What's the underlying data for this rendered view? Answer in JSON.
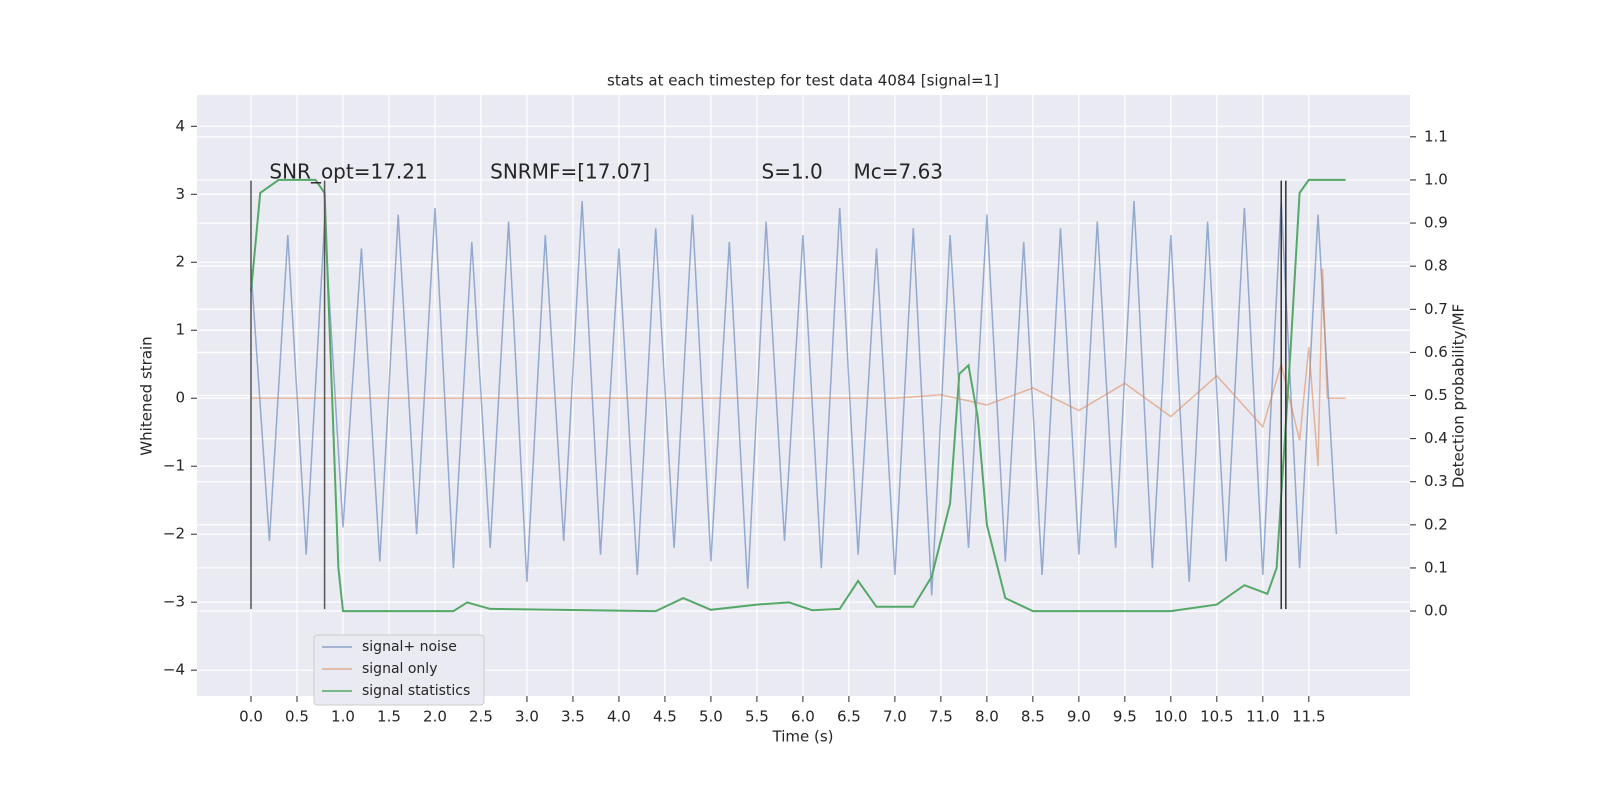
{
  "chart_data": {
    "type": "line",
    "title": "stats at each timestep for test data 4084 [signal=1]",
    "xlabel": "Time (s)",
    "ylabel": "Whitened strain",
    "y2label": "Detection probability/MF",
    "xlim": [
      -0.587,
      12.6
    ],
    "ylim": [
      -4.38,
      4.46
    ],
    "y2lim": [
      -0.197,
      1.197
    ],
    "xticks": [
      {
        "value": 0,
        "label": "0.0"
      },
      0.5,
      {
        "value": 1,
        "label": "1.0"
      },
      1.5,
      {
        "value": 2,
        "label": "2.0"
      },
      2.5,
      {
        "value": 3,
        "label": "3.0"
      },
      3.5,
      {
        "value": 4,
        "label": "4.0"
      },
      4.5,
      {
        "value": 5,
        "label": "5.0"
      },
      5.5,
      {
        "value": 6,
        "label": "6.0"
      },
      6.5,
      {
        "value": 7,
        "label": "7.0"
      },
      7.5,
      {
        "value": 8,
        "label": "8.0"
      },
      8.5,
      {
        "value": 9,
        "label": "9.0"
      },
      9.5,
      {
        "value": 10,
        "label": "10.0"
      },
      10.5,
      {
        "value": 11,
        "label": "11.0"
      },
      11.5
    ],
    "yticks": [
      {
        "value": -4,
        "label": "−4"
      },
      {
        "value": -3,
        "label": "−3"
      },
      {
        "value": -2,
        "label": "−2"
      },
      {
        "value": -1,
        "label": "−1"
      },
      0,
      1,
      2,
      3,
      4
    ],
    "y2ticks": [
      {
        "value": 0,
        "label": "0.0"
      },
      0.1,
      0.2,
      0.3,
      0.4,
      0.5,
      0.6,
      0.7,
      0.8,
      0.9,
      {
        "value": 1,
        "label": "1.0"
      },
      1.1
    ],
    "grid": true,
    "legend": "lower left",
    "series": [
      {
        "name": "signal+ noise",
        "color": "#4c72b0",
        "x": [
          0,
          0.2,
          0.4,
          0.6,
          0.8,
          1,
          1.2,
          1.4,
          1.6,
          1.8,
          2,
          2.2,
          2.4,
          2.6,
          2.8,
          3,
          3.2,
          3.4,
          3.6,
          3.8,
          4,
          4.2,
          4.4,
          4.6,
          4.8,
          5,
          5.2,
          5.4,
          5.6,
          5.8,
          6,
          6.2,
          6.4,
          6.6,
          6.8,
          7,
          7.2,
          7.4,
          7.6,
          7.8,
          8,
          8.2,
          8.4,
          8.6,
          8.8,
          9,
          9.2,
          9.4,
          9.6,
          9.8,
          10,
          10.2,
          10.4,
          10.6,
          10.8,
          11,
          11.2,
          11.4,
          11.6,
          11.8
        ],
        "values": [
          1.9,
          -2.1,
          2.4,
          -2.3,
          2.6,
          -1.9,
          2.2,
          -2.4,
          2.7,
          -2.0,
          2.8,
          -2.5,
          2.3,
          -2.2,
          2.6,
          -2.7,
          2.4,
          -2.1,
          2.9,
          -2.3,
          2.2,
          -2.6,
          2.5,
          -2.2,
          2.7,
          -2.4,
          2.3,
          -2.8,
          2.6,
          -2.1,
          2.4,
          -2.5,
          2.8,
          -2.3,
          2.2,
          -2.6,
          2.5,
          -2.9,
          2.4,
          -2.2,
          2.7,
          -2.4,
          2.3,
          -2.6,
          2.5,
          -2.3,
          2.6,
          -2.2,
          2.9,
          -2.5,
          2.4,
          -2.7,
          2.6,
          -2.4,
          2.8,
          -2.6,
          2.9,
          -2.5,
          2.7,
          -2.0
        ]
      },
      {
        "name": "signal only",
        "color": "#dd8452",
        "x": [
          0,
          7.0,
          7.5,
          8.0,
          8.5,
          9.0,
          9.5,
          10.0,
          10.5,
          11.0,
          11.2,
          11.4,
          11.5,
          11.6,
          11.65,
          11.7,
          11.9
        ],
        "values": [
          0,
          0,
          0.05,
          -0.1,
          0.15,
          -0.18,
          0.22,
          -0.27,
          0.33,
          -0.42,
          0.5,
          -0.62,
          0.75,
          -1.0,
          1.9,
          0,
          0
        ]
      },
      {
        "name": "signal statistics",
        "color": "#55a868",
        "axis": "y2",
        "x": [
          0,
          0.1,
          0.3,
          0.7,
          0.8,
          0.95,
          1.0,
          2.2,
          2.35,
          2.6,
          4.4,
          4.7,
          5.0,
          5.5,
          5.85,
          6.1,
          6.4,
          6.6,
          6.8,
          7.2,
          7.4,
          7.6,
          7.7,
          7.8,
          7.9,
          8.0,
          8.2,
          8.5,
          9.0,
          10.0,
          10.5,
          10.8,
          11.05,
          11.15,
          11.3,
          11.4,
          11.5,
          11.9
        ],
        "values": [
          0.74,
          0.97,
          1.0,
          1.0,
          0.97,
          0.1,
          0.0,
          0.0,
          0.02,
          0.005,
          0.0,
          0.03,
          0.003,
          0.015,
          0.02,
          0.002,
          0.005,
          0.07,
          0.01,
          0.01,
          0.08,
          0.25,
          0.55,
          0.57,
          0.45,
          0.2,
          0.03,
          0.0,
          0.0,
          0.0,
          0.015,
          0.06,
          0.04,
          0.1,
          0.6,
          0.97,
          1.0,
          1.0
        ]
      }
    ],
    "vlines": [
      {
        "x": 0,
        "ymin": -3.1,
        "ymax": 3.2,
        "color": "#555555"
      },
      {
        "x": 0.8,
        "ymin": -3.1,
        "ymax": 3.2,
        "color": "#555555"
      },
      {
        "x": 11.2,
        "ymin": -3.1,
        "ymax": 3.2,
        "color": "#333333"
      },
      {
        "x": 11.25,
        "ymin": -3.1,
        "ymax": 3.2,
        "color": "#333333"
      }
    ],
    "annotations": [
      {
        "text": "SNR_opt=17.21",
        "x": 0.2,
        "y": 3.31
      },
      {
        "text": "SNRMF=[17.07]",
        "x": 2.6,
        "y": 3.31
      },
      {
        "text": "S=1.0",
        "x": 5.55,
        "y": 3.31
      },
      {
        "text": "Mc=7.63",
        "x": 6.55,
        "y": 3.31
      }
    ]
  }
}
